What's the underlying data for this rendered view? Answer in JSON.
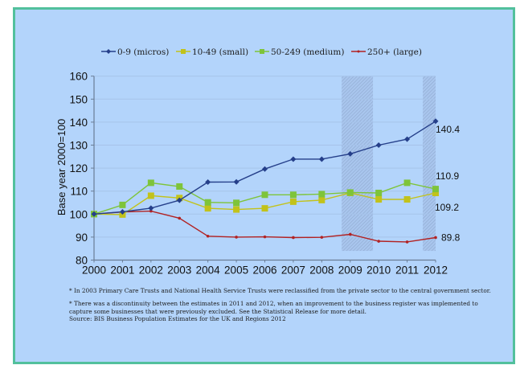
{
  "chart_data": {
    "type": "line",
    "title": "",
    "xlabel": "",
    "ylabel": "Base year 2000=100",
    "x": [
      2000,
      2001,
      2002,
      2003,
      2004,
      2005,
      2006,
      2007,
      2008,
      2009,
      2010,
      2011,
      2012
    ],
    "x_tick_labels": [
      "2000",
      "2001",
      "2002",
      "2003",
      "2004",
      "2005",
      "2006",
      "2007",
      "2008",
      "2009",
      "2010",
      "2011",
      "2012"
    ],
    "ylim": [
      80,
      160
    ],
    "y_ticks": [
      80,
      90,
      100,
      110,
      120,
      130,
      140,
      150,
      160
    ],
    "grid": true,
    "legend_position": "top",
    "shaded_bands": [
      {
        "x_from": 2008.7,
        "x_to": 2009.8,
        "note": "discontinuity"
      },
      {
        "x_from": 2011.55,
        "x_to": 2012,
        "note": "discontinuity"
      }
    ],
    "series": [
      {
        "name": "0-9 (micros)",
        "color": "#253f8a",
        "marker": "diamond",
        "values": [
          100,
          101,
          102.6,
          106,
          113.9,
          114,
          119.6,
          123.9,
          123.9,
          126.2,
          130,
          132.6,
          140.4
        ],
        "end_label": "140.4"
      },
      {
        "name": "10-49 (small)",
        "color": "#c2c21a",
        "marker": "square",
        "values": [
          100,
          99.8,
          108,
          107,
          102.5,
          102,
          102.5,
          105.4,
          106.1,
          109.2,
          106.4,
          106.4,
          109.2
        ],
        "end_label": "109.2"
      },
      {
        "name": "50-249 (medium)",
        "color": "#7ec43a",
        "marker": "square",
        "values": [
          100,
          104,
          113.6,
          112,
          105.1,
          104.9,
          108.4,
          108.4,
          108.7,
          109.4,
          109.2,
          113.6,
          110.9
        ],
        "end_label": "110.9"
      },
      {
        "name": "250+ (large)",
        "color": "#b22222",
        "marker": "dot",
        "values": [
          100,
          100.9,
          101.3,
          98.2,
          90.4,
          90,
          90.1,
          89.8,
          89.9,
          91.2,
          88.2,
          87.9,
          89.8
        ],
        "end_label": "89.8"
      }
    ]
  },
  "footnotes": {
    "note1": "* In 2003 Primary Care Trusts and National Health Service Trusts were reclassified from the private sector to the central government sector.",
    "note2": "* There was a discontinuity between the estimates in 2011 and 2012, when an improvement to the business register was implemented to capture some businesses that were previously excluded. See the Statistical Release for more detail.",
    "source": "Source: BIS Business Population Estimates for the UK and Regions 2012"
  },
  "colors": {
    "background": "#b3d4fb",
    "border": "#52c09c",
    "gridline": "#a6c3ea",
    "axis": "#6a7d96",
    "hatch": "#8fa9cf"
  }
}
